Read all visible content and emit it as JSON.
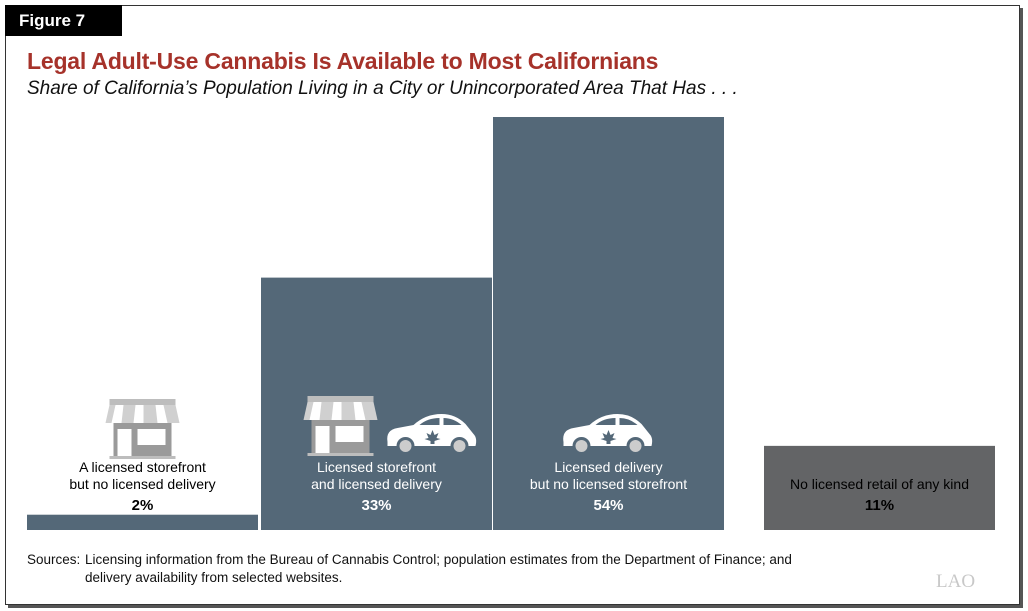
{
  "figure_label": "Figure 7",
  "logo_text": "LAO",
  "sources": {
    "label": "Sources:",
    "line1": "Licensing information from the Bureau of Cannabis Control; population estimates from the Department of Finance; and",
    "line2": "delivery availability from selected websites."
  },
  "colors": {
    "bar": "#546878",
    "bar_none": "#636466",
    "title": "#a6322a"
  },
  "chart_data": {
    "type": "bar",
    "title": "Legal Adult-Use Cannabis Is Available to Most Californians",
    "subtitle": "Share of California’s Population Living in a City or Unincorporated Area That Has . . .",
    "categories": [
      [
        "A licensed storefront",
        "but no licensed delivery"
      ],
      [
        "Licensed storefront",
        "and licensed delivery"
      ],
      [
        "Licensed delivery",
        "but no licensed storefront"
      ],
      [
        "No licensed retail of any kind"
      ]
    ],
    "values": [
      2,
      33,
      54,
      11
    ],
    "value_labels": [
      "2%",
      "33%",
      "54%",
      "11%"
    ],
    "icons": [
      [
        "storefront-icon"
      ],
      [
        "storefront-icon",
        "delivery-car-icon"
      ],
      [
        "delivery-car-icon"
      ],
      []
    ],
    "unit": "%",
    "grid": false
  }
}
